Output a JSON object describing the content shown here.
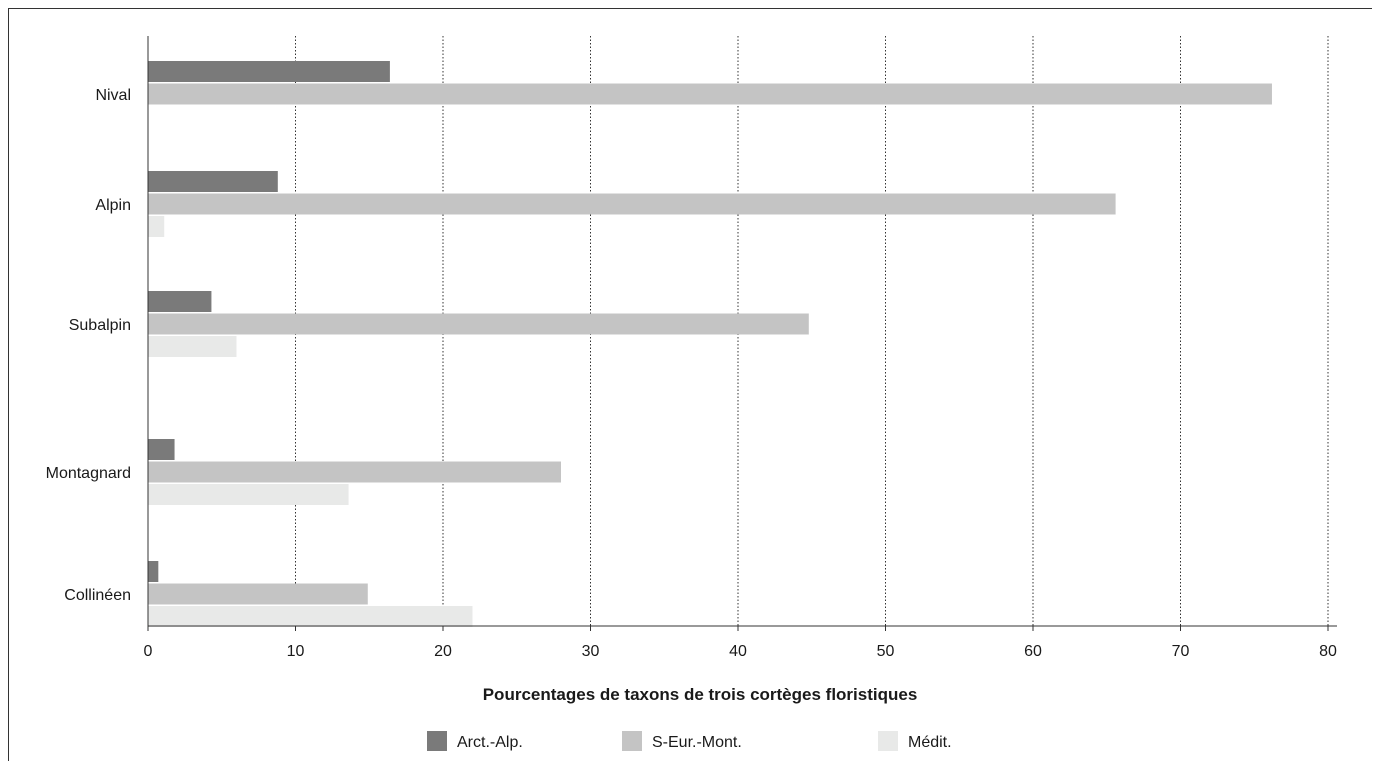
{
  "chart_data": {
    "type": "bar",
    "orientation": "horizontal",
    "categories": [
      "Nival",
      "Alpin",
      "Subalpin",
      "Montagnard",
      "Collinéen"
    ],
    "series": [
      {
        "name": "Arct.-Alp.",
        "color": "#7a7a7a",
        "values": [
          16.4,
          8.8,
          4.3,
          1.8,
          0.7
        ]
      },
      {
        "name": "S-Eur.-Mont.",
        "color": "#c4c4c4",
        "values": [
          76.2,
          65.6,
          44.8,
          28.0,
          14.9
        ]
      },
      {
        "name": "Médit.",
        "color": "#e8e9e8",
        "values": [
          0,
          1.1,
          6.0,
          13.6,
          22.0
        ]
      }
    ],
    "xlabel": "Pourcentages de taxons de trois cortèges floristiques",
    "ylabel": "",
    "xlim": [
      0,
      80
    ],
    "xticks": [
      "0",
      "10",
      "20",
      "30",
      "40",
      "50",
      "60",
      "70",
      "80"
    ],
    "grid": "vertical dotted",
    "legend": "bottom"
  }
}
